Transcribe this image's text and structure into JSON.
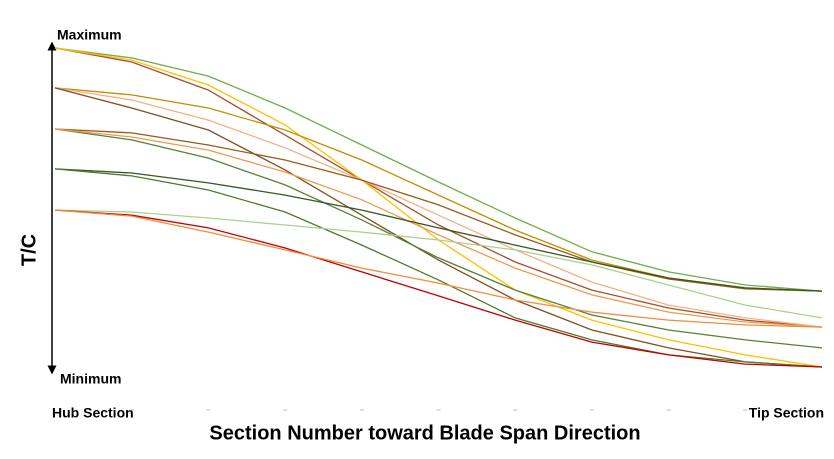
{
  "chart_data": {
    "type": "line",
    "y_label": "T/C",
    "x_label": "Section Number toward Blade Span Direction",
    "y_max_label": "Maximum",
    "y_min_label": "Minimum",
    "categories": [
      "Hub Section",
      null,
      null,
      null,
      null,
      null,
      null,
      null,
      null,
      null,
      "Tip Section"
    ],
    "ylim": [
      0,
      100
    ],
    "series": [
      {
        "color": "#70ad47",
        "values": [
          100,
          96.9,
          91.2,
          81.2,
          69.6,
          58.0,
          46.7,
          36.1,
          29.8,
          25.7,
          23.8
        ]
      },
      {
        "color": "#a0522d",
        "values": [
          100,
          95.6,
          86.8,
          72.7,
          58.6,
          44.5,
          32.9,
          24.1,
          18.5,
          14.7,
          12.5
        ]
      },
      {
        "color": "#ffc000",
        "values": [
          100,
          96.2,
          88.4,
          75.9,
          58.6,
          39.8,
          24.1,
          14.7,
          8.5,
          3.8,
          0
        ]
      },
      {
        "color": "#bf8f00",
        "values": [
          87.5,
          85.3,
          81.2,
          74.3,
          64.9,
          53.9,
          42.9,
          33.5,
          27.9,
          24.8,
          23.8
        ]
      },
      {
        "color": "#f4b183",
        "values": [
          87.5,
          83.7,
          77.4,
          68.7,
          58.6,
          47.6,
          36.7,
          26.6,
          19.4,
          15.4,
          12.5
        ]
      },
      {
        "color": "#7f4f1f",
        "values": [
          87.5,
          81.2,
          74.3,
          61.8,
          47.6,
          33.5,
          21.0,
          11.6,
          6.0,
          1.6,
          0
        ]
      },
      {
        "color": "#9c5a1a",
        "values": [
          74.6,
          73.4,
          69.6,
          64.9,
          58.6,
          50.8,
          41.4,
          32.9,
          27.6,
          24.5,
          23.8
        ]
      },
      {
        "color": "#548235",
        "values": [
          74.6,
          71.2,
          65.5,
          57.1,
          46.1,
          34.2,
          24.1,
          16.3,
          11.6,
          8.5,
          6.0
        ]
      },
      {
        "color": "#ed9a4f",
        "values": [
          74.6,
          72.1,
          68.0,
          61.1,
          52.4,
          41.4,
          31.0,
          22.6,
          17.2,
          14.1,
          12.5
        ]
      },
      {
        "color": "#375623",
        "values": [
          62.1,
          60.8,
          57.7,
          53.9,
          49.2,
          43.6,
          38.2,
          32.9,
          27.9,
          24.8,
          23.8
        ]
      },
      {
        "color": "#4e7a2c",
        "values": [
          62.1,
          59.9,
          55.5,
          48.6,
          38.2,
          27.3,
          15.4,
          8.5,
          3.8,
          1.6,
          0
        ]
      },
      {
        "color": "#a9d18e",
        "values": [
          49.2,
          48.6,
          46.7,
          44.5,
          42.3,
          39.8,
          36.7,
          32.0,
          25.7,
          19.4,
          15.4
        ]
      },
      {
        "color": "#c00000",
        "values": [
          49.2,
          47.6,
          43.6,
          37.3,
          29.8,
          22.3,
          14.7,
          7.8,
          3.8,
          0.9,
          0
        ]
      },
      {
        "color": "#f08c3c",
        "values": [
          49.2,
          47.3,
          42.3,
          36.7,
          31.0,
          26.3,
          21.0,
          17.2,
          14.7,
          13.2,
          12.5
        ]
      }
    ]
  }
}
